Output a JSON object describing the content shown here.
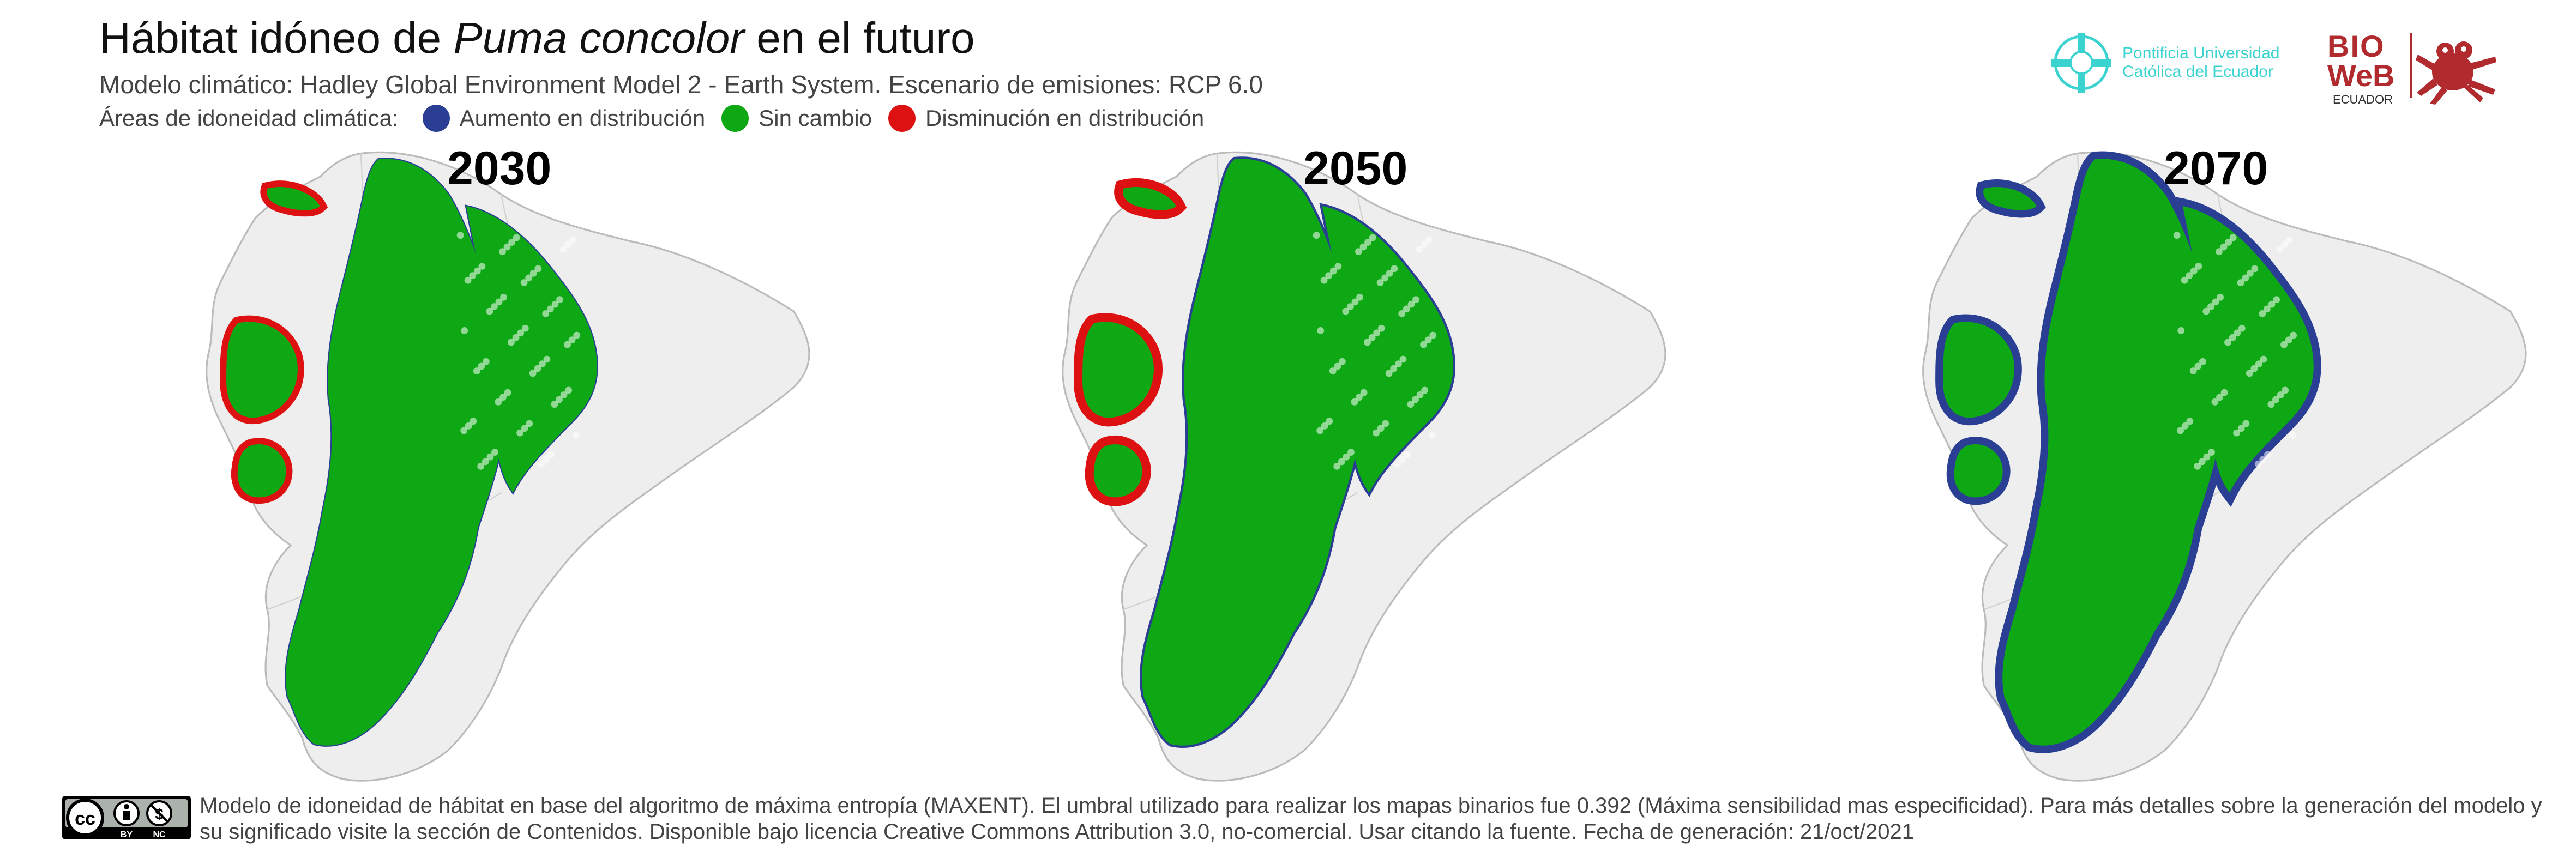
{
  "header": {
    "title_prefix": "Hábitat idóneo de ",
    "title_species": "Puma concolor",
    "title_suffix": " en el futuro",
    "subtitle": "Modelo climático: Hadley Global Environment Model 2 - Earth System. Escenario de emisiones: RCP 6.0"
  },
  "legend": {
    "label": "Áreas de idoneidad climática:",
    "items": [
      {
        "label": "Aumento en distribución",
        "color": "#2a3f94"
      },
      {
        "label": "Sin cambio",
        "color": "#0ea814"
      },
      {
        "label": "Disminución en distribución",
        "color": "#dd1111"
      }
    ]
  },
  "logos": {
    "puce_line1": "Pontificia Universidad",
    "puce_line2": "Católica del Ecuador",
    "bioweb_top": "BIO",
    "bioweb_mid": "WeB",
    "bioweb_sub": "ECUADOR"
  },
  "colors": {
    "country_fill": "#eeeeee",
    "country_border": "#bbbbbb",
    "increase": "#2a3f94",
    "no_change": "#0ea814",
    "decrease": "#dd1111"
  },
  "maps": [
    {
      "year": "2030"
    },
    {
      "year": "2050"
    },
    {
      "year": "2070"
    }
  ],
  "footer": {
    "license_icons": "cc-by-nc-icon",
    "text": "Modelo de idoneidad de hábitat en base del algoritmo de máxima entropía (MAXENT). El umbral utilizado para realizar los mapas binarios fue 0.392 (Máxima sensibilidad mas especificidad). Para más detalles sobre la generación del modelo y su significado visite la sección de Contenidos. Disponible bajo licencia Creative Commons Attribution 3.0, no-comercial. Usar citando la fuente. Fecha de generación: 21/oct/2021"
  }
}
